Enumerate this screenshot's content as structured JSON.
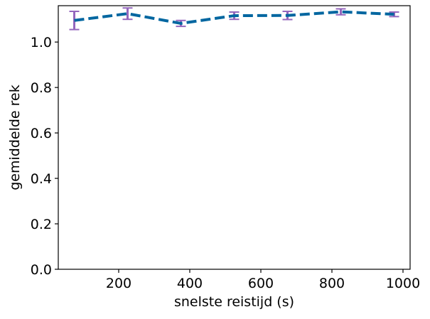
{
  "chart_data": {
    "type": "line",
    "title": "",
    "xlabel": "snelste reistijd (s)",
    "ylabel": "gemiddelde rek",
    "xlim": [
      30,
      1020
    ],
    "ylim": [
      0.0,
      1.16
    ],
    "x_ticks": [
      200,
      400,
      600,
      800,
      1000
    ],
    "y_ticks": [
      0.0,
      0.2,
      0.4,
      0.6,
      0.8,
      1.0
    ],
    "x_tick_labels": [
      "200",
      "400",
      "600",
      "800",
      "1000"
    ],
    "y_tick_labels": [
      "0.0",
      "0.2",
      "0.4",
      "0.6",
      "0.8",
      "1.0"
    ],
    "grid": false,
    "legend": "none",
    "series": [
      {
        "x": [
          75,
          225,
          375,
          525,
          675,
          825,
          975
        ],
        "y": [
          1.095,
          1.125,
          1.082,
          1.116,
          1.117,
          1.133,
          1.122
        ],
        "error": [
          0.04,
          0.025,
          0.013,
          0.016,
          0.018,
          0.013,
          0.01
        ],
        "line_color": "#0066a0",
        "line_style": "dashed",
        "error_color": "#9467bd"
      }
    ]
  }
}
